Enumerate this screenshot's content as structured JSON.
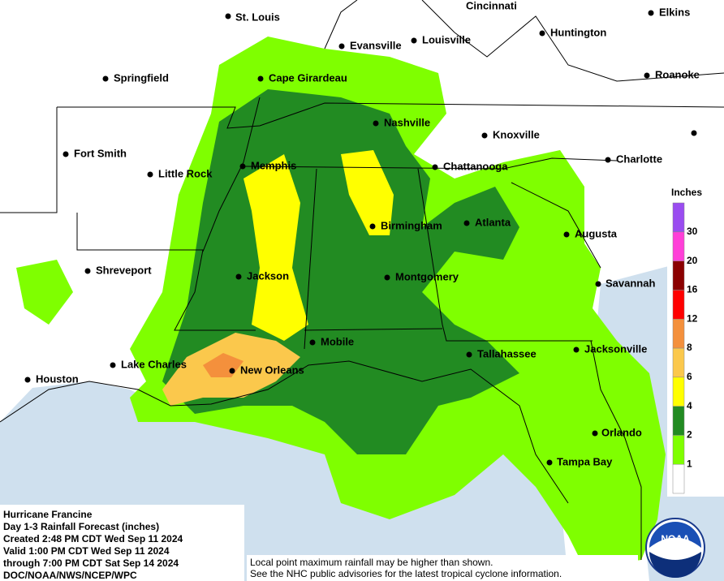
{
  "map": {
    "cities": [
      "St. Louis",
      "Cincinnati",
      "Elkins",
      "Evansville",
      "Louisville",
      "Huntington",
      "Springfield",
      "Cape Girardeau",
      "Roanoke",
      "Nashville",
      "Knoxville",
      "Fort Smith",
      "Charlotte",
      "Little Rock",
      "Memphis",
      "Chattanooga",
      "Birmingham",
      "Atlanta",
      "Augusta",
      "Shreveport",
      "Jackson",
      "Montgomery",
      "Savannah",
      "Mobile",
      "Lake Charles",
      "Tallahassee",
      "Jacksonville",
      "Houston",
      "New Orleans",
      "Orlando",
      "Tampa Bay"
    ]
  },
  "legend": {
    "title": "Inches",
    "labels": [
      "1",
      "2",
      "4",
      "6",
      "8",
      "12",
      "16",
      "20",
      "30"
    ],
    "colors": [
      "#ffffff",
      "#7fff00",
      "#228b22",
      "#ffff00",
      "#fbc84c",
      "#f4903c",
      "#ff0000",
      "#8b0000",
      "#ff3fd8",
      "#9a4cf0"
    ]
  },
  "info": {
    "lines": [
      "Hurricane Francine",
      "Day 1-3 Rainfall Forecast (inches)",
      "Created 2:48 PM CDT Wed Sep 11 2024",
      "Valid 1:00 PM CDT Wed Sep 11 2024",
      "through 7:00 PM CDT Sat Sep 14 2024",
      "DOC/NOAA/NWS/NCEP/WPC"
    ]
  },
  "notes": [
    "Local point maximum rainfall may be higher than shown.",
    "See the NHC public advisories for the latest tropical cyclone information."
  ],
  "logo": "NOAA"
}
